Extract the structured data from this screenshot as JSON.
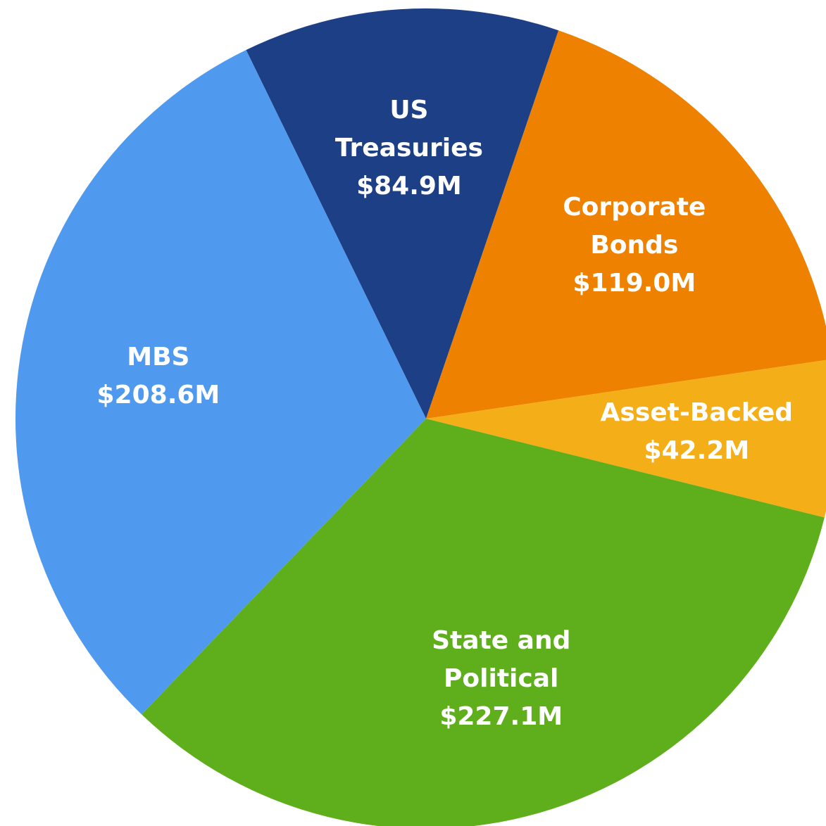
{
  "chart_data": {
    "type": "pie",
    "categories": [
      "US\nTreasuries",
      "Corporate\nBonds",
      "Asset-Backed",
      "State and\nPolitical",
      "MBS"
    ],
    "values": [
      84.9,
      119.0,
      42.2,
      227.1,
      208.6
    ],
    "value_labels": [
      "$84.9M",
      "$119.0M",
      "$42.2M",
      "$227.1M",
      "$208.6M"
    ],
    "colors": [
      "#1c3f85",
      "#ee8100",
      "#f4ae17",
      "#5faf1d",
      "#4f99ef"
    ]
  }
}
